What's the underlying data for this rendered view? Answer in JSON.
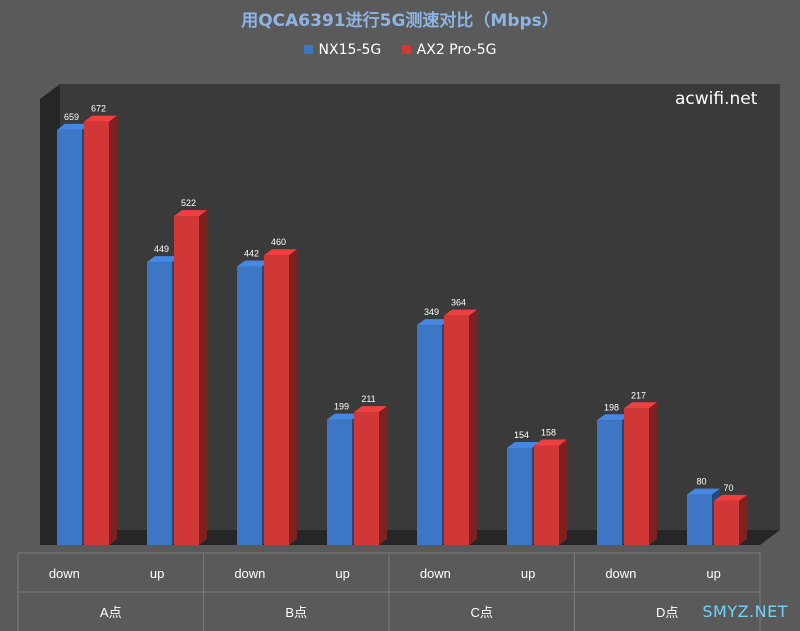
{
  "chart_data": {
    "type": "bar",
    "title": "用QCA6391进行5G测速对比（Mbps）",
    "watermark": "acwifi.net",
    "corner_watermark": "SMYZ.NET",
    "groups": [
      "A点",
      "B点",
      "C点",
      "D点"
    ],
    "categories": [
      "down",
      "up",
      "down",
      "up",
      "down",
      "up",
      "down",
      "up"
    ],
    "series": [
      {
        "name": "NX15-5G",
        "color": "#3d76c4",
        "values": [
          659,
          449,
          442,
          199,
          349,
          154,
          198,
          80
        ]
      },
      {
        "name": "AX2 Pro-5G",
        "color": "#d23737",
        "values": [
          672,
          522,
          460,
          211,
          364,
          158,
          217,
          70
        ]
      }
    ],
    "ylim": [
      0,
      700
    ],
    "grid": false,
    "legend_position": "top-center"
  }
}
